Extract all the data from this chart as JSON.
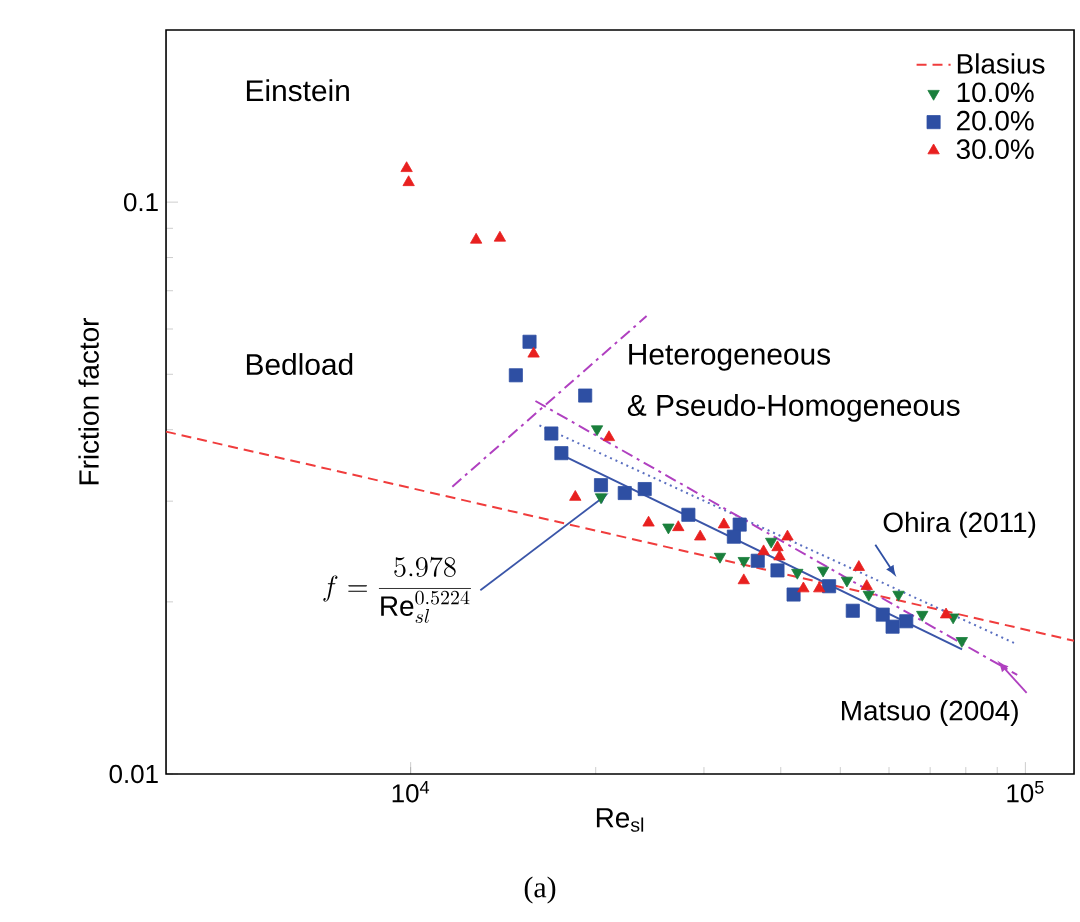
{
  "chart_data": {
    "type": "scatter",
    "xlabel": "Re$_{sl}$",
    "ylabel": "Friction factor",
    "log": "xy",
    "xlim": [
      4000,
      120000
    ],
    "ylim": [
      0.01,
      0.2
    ],
    "xticks": [
      {
        "value": 10000,
        "label": "10$^{4}$"
      },
      {
        "value": 100000,
        "label": "10$^{5}$"
      }
    ],
    "yticks": [
      0.01,
      0.1
    ],
    "legend": "top right",
    "series": [
      {
        "name": "Blasius",
        "type": "line",
        "color": "#f03c3c",
        "line_style": "dashed",
        "x": [
          4000,
          120000
        ],
        "values": [
          0.0397,
          0.0171
        ]
      },
      {
        "name": "10.0%",
        "color": "#1a7f3c",
        "marker": "triangle-down",
        "x": [
          20100,
          20400,
          26260,
          31860,
          34830,
          38600,
          42560,
          46880,
          51250,
          55620,
          62180,
          67960,
          76300,
          78830
        ],
        "values": [
          0.0401,
          0.0305,
          0.027,
          0.024,
          0.0236,
          0.0255,
          0.0225,
          0.0227,
          0.0218,
          0.0206,
          0.0206,
          0.019,
          0.0188,
          0.0171
        ]
      },
      {
        "name": "20.0%",
        "color": "#2e4fa3",
        "marker": "square",
        "x": [
          15610,
          14830,
          19230,
          16940,
          17590,
          20400,
          22300,
          24030,
          28300,
          34300,
          33560,
          36700,
          39520,
          41970,
          47940,
          52390,
          58610,
          60810,
          64010
        ],
        "values": [
          0.057,
          0.0498,
          0.0459,
          0.0394,
          0.0364,
          0.032,
          0.031,
          0.0315,
          0.0284,
          0.0273,
          0.026,
          0.0236,
          0.0227,
          0.0206,
          0.0213,
          0.0193,
          0.019,
          0.0181,
          0.0185
        ]
      },
      {
        "name": "30.0%",
        "color": "#e8201f",
        "marker": "triangle",
        "x": [
          9850,
          9925,
          12780,
          13970,
          15850,
          21020,
          18530,
          24380,
          27250,
          29580,
          32330,
          34830,
          37510,
          39520,
          41020,
          39810,
          43540,
          46200,
          53590,
          55200,
          74300
        ],
        "values": [
          0.1146,
          0.1083,
          0.0859,
          0.0866,
          0.0543,
          0.0388,
          0.0305,
          0.0275,
          0.027,
          0.026,
          0.0273,
          0.0218,
          0.0245,
          0.0249,
          0.026,
          0.024,
          0.0211,
          0.0211,
          0.023,
          0.0213,
          0.019
        ]
      },
      {
        "type": "line",
        "color": "#3a55a8",
        "line_style": "solid",
        "x": [
          17200,
          78900
        ],
        "values": [
          0.0366,
          0.01652
        ]
      },
      {
        "type": "line",
        "color": "#5a6fc0",
        "line_style": "dotted",
        "x": [
          16200,
          96400
        ],
        "values": [
          0.0407,
          0.0169
        ]
      },
      {
        "type": "line",
        "color": "#b040c0",
        "line_style": "dashdotted",
        "x": [
          15960,
          97000
        ],
        "values": [
          0.0449,
          0.0149
        ]
      },
      {
        "type": "line",
        "color": "#b040c0",
        "line_style": "dashdotted",
        "x": [
          11690,
          24200
        ],
        "values": [
          0.0318,
          0.0632
        ]
      }
    ],
    "annotations": [
      "Einstein",
      "Bedload",
      "Heterogeneous",
      "& Pseudo-Homogeneous",
      {
        "text": "Ohira (2011)",
        "x": 61700,
        "y": 0.0221
      },
      {
        "text": "Matsuo (2004)",
        "x": 90000,
        "y": 0.0158
      },
      {
        "text": "f=\\frac{5.978}{\\mathrm{Re}_{sl}^{0.5224}}",
        "x": 21000,
        "y": 0.031
      },
      "(a)"
    ]
  }
}
